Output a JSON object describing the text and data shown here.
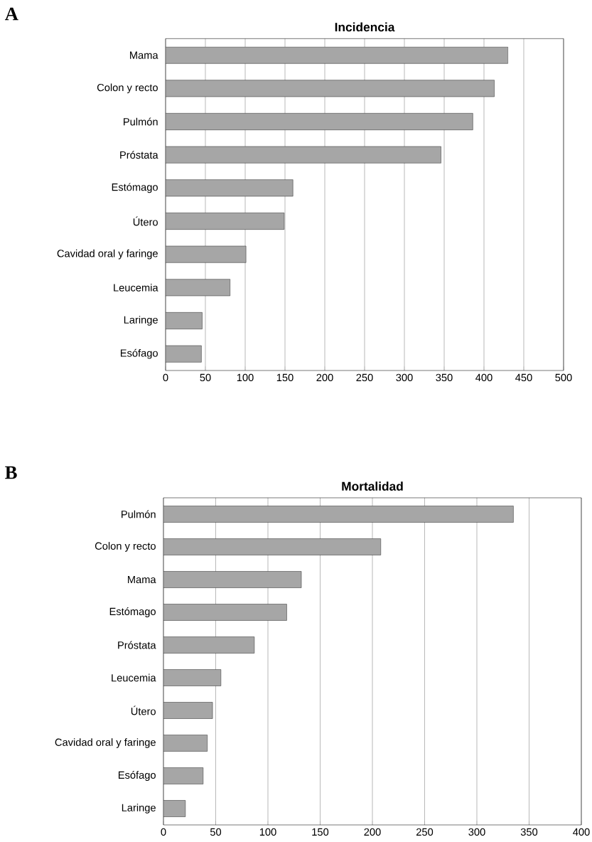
{
  "chart_data": [
    {
      "type": "bar",
      "orientation": "horizontal",
      "title": "Incidencia",
      "annotations": [
        "A"
      ],
      "categories": [
        "Mama",
        "Colon y recto",
        "Pulmón",
        "Próstata",
        "Estómago",
        "Útero",
        "Cavidad oral y faringe",
        "Leucemia",
        "Laringe",
        "Esófago"
      ],
      "values": [
        430,
        413,
        386,
        346,
        160,
        149,
        101,
        81,
        46,
        45
      ],
      "color": "#a6a6a6",
      "xlim": [
        0,
        500
      ],
      "xticks": [
        0,
        50,
        100,
        150,
        200,
        250,
        300,
        350,
        400,
        450,
        500
      ],
      "grid": "x"
    },
    {
      "type": "bar",
      "orientation": "horizontal",
      "title": "Mortalidad",
      "annotations": [
        "B"
      ],
      "categories": [
        "Pulmón",
        "Colon y recto",
        "Mama",
        "Estómago",
        "Próstata",
        "Leucemia",
        "Útero",
        "Cavidad oral y faringe",
        "Esófago",
        "Laringe"
      ],
      "values": [
        335,
        208,
        132,
        118,
        87,
        55,
        47,
        42,
        38,
        21
      ],
      "color": "#a6a6a6",
      "xlim": [
        0,
        400
      ],
      "xticks": [
        0,
        50,
        100,
        150,
        200,
        250,
        300,
        350,
        400
      ],
      "grid": "x"
    }
  ]
}
